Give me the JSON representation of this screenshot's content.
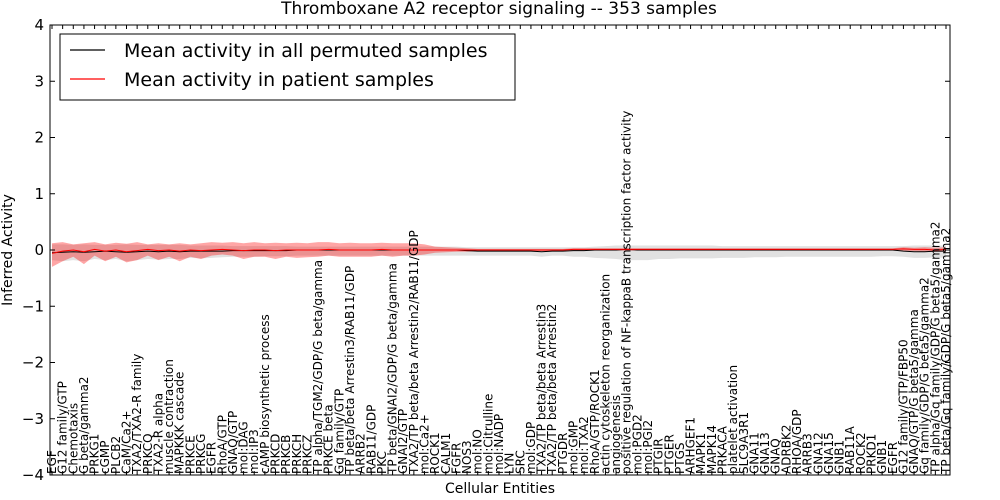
{
  "chart_data": {
    "type": "line",
    "title": "Thromboxane A2 receptor signaling -- 353 samples",
    "xlabel": "Cellular Entities",
    "ylabel": "Inferred Activity",
    "ylim": [
      -4,
      4
    ],
    "yticks": [
      -4,
      -3,
      -2,
      -1,
      0,
      1,
      2,
      3,
      4
    ],
    "ytick_labels": [
      "−4",
      "−3",
      "−2",
      "−1",
      "0",
      "1",
      "2",
      "3",
      "4"
    ],
    "legend": {
      "location": "top-left",
      "entries": [
        {
          "label": "Mean activity in all permuted samples",
          "color": "#000000"
        },
        {
          "label": "Mean activity in patient samples",
          "color": "#ff0000"
        }
      ]
    },
    "categories": [
      "EGF",
      "G12 family/GTP",
      "Chemotaxis",
      "G beta/gamma2",
      "PRKG1",
      "cGMP",
      "PLCB2",
      "CaM/Ca2+",
      "TXA2/TXA2-R family",
      "PRKCQ",
      "TXA2-R alpha",
      "muscle contraction",
      "MAPKKK cascade",
      "PRKCE",
      "PRKCG",
      "EGFR",
      "RhoA/GTP",
      "GNAQ/GTP",
      "mol:DAG",
      "mol:IP3",
      "cAMP biosynthetic process",
      "PRKCD",
      "PRKCB",
      "PRKCH",
      "PRKCZ",
      "TP alpha/TGM2/GDP/G beta/gamma",
      "PRKCE beta",
      "Gq family/GTP",
      "TP beta/beta Arrestin3/RAB11/GDP",
      "ARRB2",
      "RAB11/GDP",
      "PKC",
      "TP beta/GNAI2/GDP/G beta/gamma",
      "GNAI2/GTP",
      "TXA2/TP beta/beta Arrestin2/RAB11/GDP",
      "mol:Ca2+",
      "ROCK1",
      "CALM1",
      "FGFR",
      "NOS3",
      "mol:NO",
      "mol:Citrulline",
      "mol:NADP",
      "LYN",
      "SRC",
      "mol:GDP",
      "TXA2/TP beta/beta Arrestin3",
      "TXA2/TP beta/beta Arrestin2",
      "PTGDR",
      "mol:GMP",
      "mol:TXA2",
      "RhoA/GTP/ROCK1",
      "actin cytoskeleton reorganization",
      "angiogenesis",
      "positive regulation of NF-kappaB transcription factor activity",
      "mol:PGD2",
      "mol:PGI2",
      "PTGIR",
      "PTGER",
      "PTGS",
      "ARHGEF1",
      "MAPK1",
      "MAPK14",
      "PRKACA",
      "platelet activation",
      "SLC9A3R1",
      "GNA11",
      "GNA13",
      "GNAQ",
      "ADRBK2",
      "RHOA/GDP",
      "ARRB3",
      "GNA12",
      "GNA15",
      "GNB1",
      "RAB11A",
      "ROCK2",
      "PRKD1",
      "GNB1",
      "EGFR",
      "G12 family/GTP/FBP50",
      "GNAQ/GTP/G beta5/gamma",
      "Gq family/GDP/G beta5/gamma2",
      "TP alpha/Gq family/GDP/G beta5/gamma2",
      "TP beta/Gq family/GDP/G beta5/gamma2"
    ],
    "series": [
      {
        "name": "Mean activity in all permuted samples",
        "color": "#000000",
        "values": [
          -0.05,
          -0.04,
          -0.03,
          -0.04,
          -0.03,
          -0.02,
          -0.03,
          -0.04,
          -0.03,
          -0.02,
          -0.03,
          -0.02,
          -0.03,
          -0.02,
          -0.02,
          -0.02,
          -0.02,
          -0.01,
          -0.01,
          -0.01,
          -0.01,
          -0.01,
          -0.01,
          0.0,
          0.0,
          0.0,
          0.0,
          0.0,
          0.0,
          0.0,
          0.0,
          0.0,
          0.0,
          0.0,
          0.0,
          0.0,
          0.0,
          0.0,
          0.0,
          -0.01,
          -0.02,
          -0.02,
          -0.02,
          -0.02,
          -0.02,
          -0.02,
          -0.03,
          -0.02,
          -0.02,
          -0.01,
          -0.01,
          0.0,
          0.0,
          0.0,
          0.01,
          0.0,
          0.0,
          0.0,
          0.0,
          0.0,
          0.0,
          0.0,
          0.0,
          0.0,
          0.0,
          0.0,
          0.0,
          0.0,
          0.0,
          0.0,
          0.0,
          0.0,
          0.0,
          0.0,
          0.0,
          0.0,
          0.0,
          0.0,
          0.0,
          0.0,
          -0.02,
          -0.03,
          -0.03,
          -0.02,
          -0.02
        ],
        "lower": [
          -0.18,
          -0.2,
          -0.18,
          -0.2,
          -0.16,
          -0.18,
          -0.16,
          -0.2,
          -0.18,
          -0.16,
          -0.17,
          -0.16,
          -0.16,
          -0.14,
          -0.15,
          -0.14,
          -0.13,
          -0.12,
          -0.12,
          -0.12,
          -0.11,
          -0.11,
          -0.11,
          -0.1,
          -0.1,
          -0.1,
          -0.1,
          -0.1,
          -0.1,
          -0.1,
          -0.1,
          -0.1,
          -0.1,
          -0.1,
          -0.1,
          -0.1,
          -0.1,
          -0.1,
          -0.1,
          -0.1,
          -0.1,
          -0.1,
          -0.1,
          -0.1,
          -0.1,
          -0.1,
          -0.12,
          -0.1,
          -0.1,
          -0.12,
          -0.12,
          -0.14,
          -0.15,
          -0.16,
          -0.18,
          -0.18,
          -0.18,
          -0.16,
          -0.16,
          -0.15,
          -0.15,
          -0.15,
          -0.15,
          -0.14,
          -0.14,
          -0.14,
          -0.13,
          -0.13,
          -0.13,
          -0.12,
          -0.12,
          -0.12,
          -0.12,
          -0.12,
          -0.12,
          -0.12,
          -0.12,
          -0.12,
          -0.11,
          -0.11,
          -0.12,
          -0.14,
          -0.14,
          -0.13,
          -0.14
        ],
        "upper": [
          0.1,
          0.1,
          0.09,
          0.1,
          0.09,
          0.09,
          0.09,
          0.1,
          0.09,
          0.09,
          0.09,
          0.09,
          0.09,
          0.08,
          0.08,
          0.08,
          0.08,
          0.07,
          0.07,
          0.07,
          0.07,
          0.07,
          0.07,
          0.06,
          0.06,
          0.06,
          0.06,
          0.06,
          0.06,
          0.06,
          0.06,
          0.06,
          0.06,
          0.06,
          0.06,
          0.06,
          0.06,
          0.06,
          0.06,
          0.05,
          0.05,
          0.05,
          0.05,
          0.05,
          0.05,
          0.05,
          0.05,
          0.05,
          0.05,
          0.05,
          0.05,
          0.06,
          0.07,
          0.08,
          0.08,
          0.08,
          0.08,
          0.08,
          0.08,
          0.08,
          0.08,
          0.08,
          0.08,
          0.07,
          0.07,
          0.07,
          0.07,
          0.07,
          0.07,
          0.07,
          0.07,
          0.07,
          0.07,
          0.07,
          0.07,
          0.07,
          0.07,
          0.07,
          0.07,
          0.07,
          0.07,
          0.08,
          0.08,
          0.08,
          0.08
        ]
      },
      {
        "name": "Mean activity in patient samples",
        "color": "#ff0000",
        "values": [
          -0.06,
          -0.02,
          0.0,
          -0.03,
          0.01,
          -0.02,
          0.0,
          -0.03,
          -0.01,
          0.01,
          -0.01,
          0.0,
          -0.02,
          0.0,
          -0.01,
          0.0,
          0.01,
          0.0,
          -0.01,
          0.0,
          0.0,
          -0.01,
          0.0,
          0.0,
          0.0,
          0.0,
          0.01,
          0.0,
          0.0,
          0.0,
          0.0,
          0.01,
          0.0,
          0.0,
          0.0,
          0.0,
          0.0,
          0.0,
          0.0,
          0.0,
          0.0,
          0.0,
          0.0,
          0.0,
          0.0,
          0.0,
          0.0,
          0.0,
          0.0,
          0.01,
          0.01,
          0.01,
          0.01,
          0.01,
          0.01,
          0.01,
          0.01,
          0.01,
          0.01,
          0.01,
          0.01,
          0.01,
          0.01,
          0.01,
          0.01,
          0.01,
          0.01,
          0.01,
          0.01,
          0.01,
          0.01,
          0.01,
          0.01,
          0.01,
          0.01,
          0.01,
          0.01,
          0.01,
          0.01,
          0.01,
          0.02,
          0.01,
          0.01,
          0.0,
          0.01
        ],
        "lower": [
          -0.3,
          -0.2,
          -0.12,
          -0.25,
          -0.1,
          -0.2,
          -0.12,
          -0.22,
          -0.18,
          -0.1,
          -0.18,
          -0.12,
          -0.2,
          -0.12,
          -0.16,
          -0.1,
          -0.08,
          -0.1,
          -0.16,
          -0.12,
          -0.12,
          -0.16,
          -0.12,
          -0.14,
          -0.13,
          -0.12,
          -0.1,
          -0.12,
          -0.12,
          -0.12,
          -0.12,
          -0.1,
          -0.12,
          -0.1,
          -0.1,
          -0.08,
          -0.05,
          -0.04,
          -0.03,
          -0.03,
          -0.02,
          -0.02,
          -0.02,
          -0.02,
          -0.02,
          -0.02,
          -0.02,
          -0.02,
          -0.02,
          -0.01,
          -0.01,
          -0.01,
          -0.01,
          -0.01,
          -0.01,
          -0.01,
          -0.01,
          -0.01,
          -0.01,
          -0.01,
          -0.01,
          -0.01,
          -0.01,
          -0.01,
          -0.01,
          -0.01,
          -0.01,
          -0.01,
          -0.01,
          -0.01,
          -0.01,
          -0.01,
          -0.01,
          -0.01,
          -0.01,
          -0.01,
          -0.01,
          -0.01,
          -0.01,
          -0.01,
          -0.02,
          -0.02,
          -0.03,
          -0.03,
          -0.03
        ],
        "upper": [
          0.12,
          0.14,
          0.1,
          0.12,
          0.14,
          0.1,
          0.13,
          0.11,
          0.14,
          0.1,
          0.12,
          0.1,
          0.12,
          0.1,
          0.12,
          0.14,
          0.13,
          0.14,
          0.12,
          0.14,
          0.12,
          0.13,
          0.12,
          0.13,
          0.12,
          0.14,
          0.14,
          0.12,
          0.13,
          0.12,
          0.12,
          0.13,
          0.12,
          0.12,
          0.12,
          0.1,
          0.06,
          0.05,
          0.04,
          0.03,
          0.02,
          0.02,
          0.02,
          0.02,
          0.02,
          0.02,
          0.02,
          0.02,
          0.02,
          0.03,
          0.03,
          0.03,
          0.03,
          0.03,
          0.03,
          0.03,
          0.03,
          0.03,
          0.03,
          0.03,
          0.03,
          0.03,
          0.03,
          0.03,
          0.03,
          0.03,
          0.03,
          0.03,
          0.03,
          0.03,
          0.03,
          0.03,
          0.03,
          0.03,
          0.03,
          0.03,
          0.03,
          0.03,
          0.03,
          0.03,
          0.05,
          0.04,
          0.05,
          0.04,
          0.05
        ]
      }
    ]
  }
}
